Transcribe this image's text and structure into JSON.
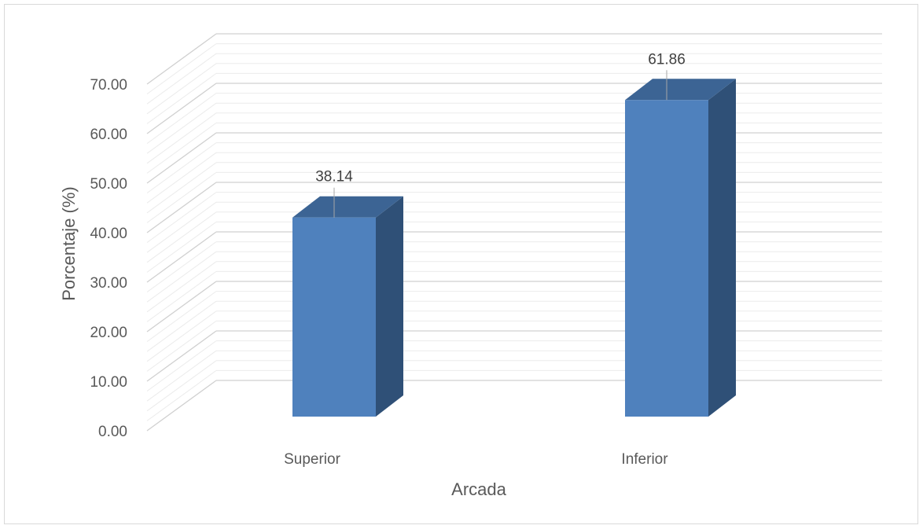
{
  "chart_data": {
    "type": "bar",
    "style": "3d-column",
    "categories": [
      "Superior",
      "Inferior"
    ],
    "series": [
      {
        "values": [
          38.14,
          61.86
        ]
      }
    ],
    "data_labels": [
      "38.14",
      "61.86"
    ],
    "xlabel": "Arcada",
    "ylabel": "Porcentaje (%)",
    "ylim": [
      0,
      70
    ],
    "y_ticks": [
      "0.00",
      "10.00",
      "20.00",
      "30.00",
      "40.00",
      "50.00",
      "60.00",
      "70.00"
    ],
    "grid": true,
    "legend": "none",
    "colors": {
      "bar_front": "#4f81bd",
      "bar_top": "#3c6494",
      "bar_side": "#2f5077",
      "gridline": "#d9d9d9",
      "text": "#595959"
    }
  }
}
